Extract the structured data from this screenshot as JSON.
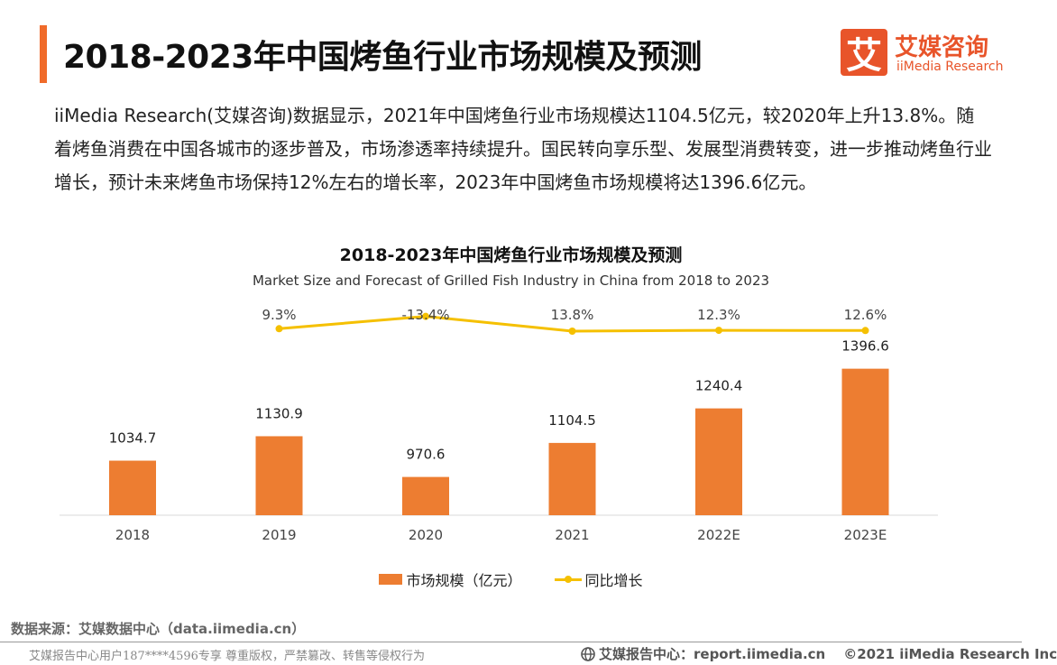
{
  "header": {
    "title": "2018-2023年中国烤鱼行业市场规模及预测",
    "logo_cn": "艾媒咨询",
    "logo_en": "iiMedia Research",
    "logo_mark": "艾"
  },
  "intro_text": "iiMedia Research(艾媒咨询)数据显示，2021年中国烤鱼行业市场规模达1104.5亿元，较2020年上升13.8%。随着烤鱼消费在中国各城市的逐步普及，市场渗透率持续提升。国民转向享乐型、发展型消费转变，进一步推动烤鱼行业增长，预计未来烤鱼市场保持12%左右的增长率，2023年中国烤鱼市场规模将达1396.6亿元。",
  "colors": {
    "accent": "#f06b2a",
    "bar": "#ed7d31",
    "line": "#f5c000"
  },
  "chart_data": {
    "type": "bar",
    "title": "2018-2023年中国烤鱼行业市场规模及预测",
    "subtitle": "Market Size and Forecast of Grilled Fish Industry in China from 2018 to 2023",
    "categories": [
      "2018",
      "2019",
      "2020",
      "2021",
      "2022E",
      "2023E"
    ],
    "series": [
      {
        "name": "市场规模（亿元）",
        "type": "bar",
        "values": [
          1034.7,
          1130.9,
          970.6,
          1104.5,
          1240.4,
          1396.6
        ],
        "labels": [
          "1034.7",
          "1130.9",
          "970.6",
          "1104.5",
          "1240.4",
          "1396.6"
        ]
      },
      {
        "name": "同比增长",
        "type": "line",
        "values": [
          null,
          9.3,
          -13.4,
          13.8,
          12.3,
          12.6
        ],
        "labels": [
          "",
          "9.3%",
          "-13.4%",
          "13.8%",
          "12.3%",
          "12.6%"
        ]
      }
    ],
    "legend_position": "bottom",
    "grid": false
  },
  "source": "数据来源：艾媒数据中心（data.iimedia.cn）",
  "footer": {
    "left": "艾媒报告中心用户187****4596专享 尊重版权，严禁篡改、转售等侵权行为",
    "site": "艾媒报告中心：report.iimedia.cn",
    "copyright": "©2021  iiMedia Research  Inc"
  }
}
